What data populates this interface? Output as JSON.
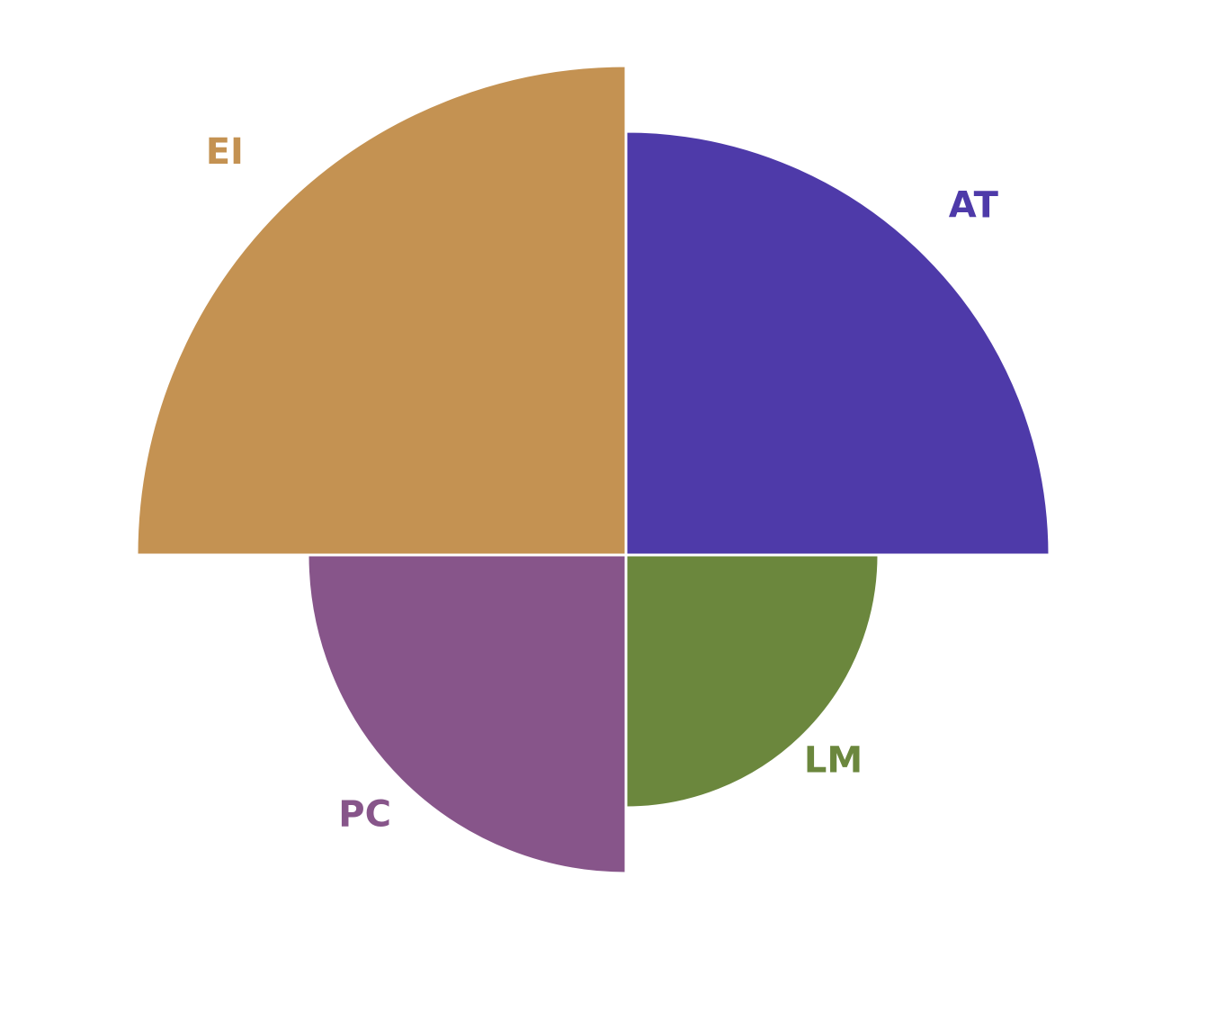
{
  "chart_data": {
    "type": "polar-area",
    "title": "",
    "slices": [
      {
        "label": "AT",
        "value": 471,
        "color": "#4e3aa9"
      },
      {
        "label": "LM",
        "value": 281,
        "color": "#6b873d"
      },
      {
        "label": "PC",
        "value": 354,
        "color": "#87558a"
      },
      {
        "label": "EI",
        "value": 544,
        "color": "#c49252"
      }
    ],
    "max_value": 544,
    "legend": "none"
  }
}
